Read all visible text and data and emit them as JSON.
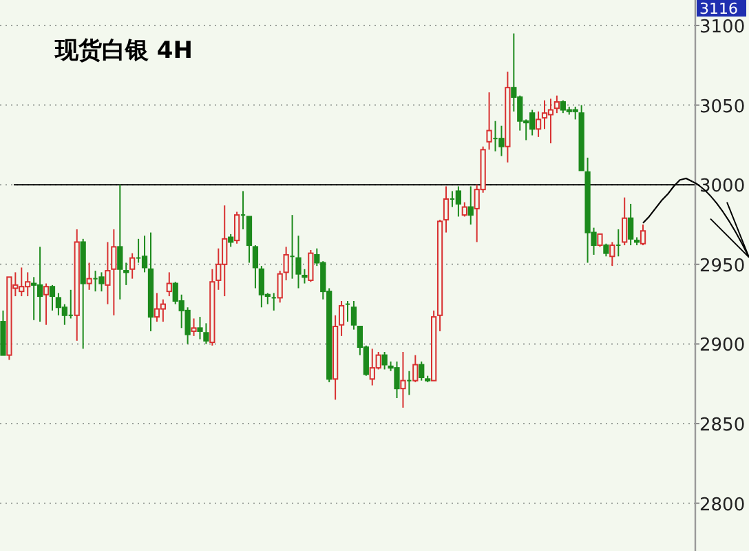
{
  "chart_data": {
    "type": "candlestick",
    "title": "现货白银 4H",
    "categories": [
      null,
      null,
      null,
      null,
      null,
      null,
      null,
      null,
      null,
      null,
      null,
      null,
      null,
      null,
      null,
      null,
      null,
      null,
      null,
      null,
      null,
      null,
      null,
      null,
      null,
      null,
      null,
      null,
      null,
      null,
      null,
      null,
      null,
      null,
      null,
      null,
      null,
      null,
      null,
      null,
      null,
      null,
      null,
      null,
      null,
      null,
      null,
      null,
      null,
      null,
      null,
      null,
      null,
      null,
      null,
      null,
      null,
      null,
      null,
      null,
      null,
      null,
      null,
      null,
      null,
      null,
      null,
      null,
      null,
      null,
      null,
      null,
      null,
      null,
      null,
      null,
      null,
      null,
      null,
      null,
      null,
      null,
      null,
      null,
      null,
      null,
      null,
      null,
      null,
      null,
      null,
      null,
      null,
      null,
      null,
      null,
      null,
      null,
      null,
      null,
      null,
      null,
      null,
      null,
      null,
      null,
      null,
      null,
      null,
      null,
      null,
      null,
      null
    ],
    "ohlc": [
      [
        2914,
        2921,
        2893,
        2893
      ],
      [
        2893,
        2942,
        2890,
        2942
      ],
      [
        2935,
        2945,
        2930,
        2937
      ],
      [
        2933,
        2948,
        2930,
        2936
      ],
      [
        2936,
        2945,
        2930,
        2939
      ],
      [
        2938,
        2942,
        2915,
        2937
      ],
      [
        2937,
        2961,
        2914,
        2930
      ],
      [
        2931,
        2938,
        2912,
        2936
      ],
      [
        2936,
        2937,
        2921,
        2930
      ],
      [
        2929,
        2932,
        2918,
        2923
      ],
      [
        2923,
        2925,
        2912,
        2918
      ],
      [
        2918,
        2934,
        2916,
        2918
      ],
      [
        2918,
        2972,
        2902,
        2964
      ],
      [
        2964,
        2966,
        2897,
        2938
      ],
      [
        2938,
        2951,
        2934,
        2941
      ],
      [
        2941,
        2946,
        2933,
        2941
      ],
      [
        2942,
        2945,
        2933,
        2938
      ],
      [
        2937,
        2964,
        2925,
        2946
      ],
      [
        2947,
        2972,
        2918,
        2961
      ],
      [
        2961,
        3000,
        2928,
        2947
      ],
      [
        2946,
        2951,
        2937,
        2945
      ],
      [
        2947,
        2957,
        2941,
        2954
      ],
      [
        2954,
        2966,
        2951,
        2954
      ],
      [
        2955,
        2968,
        2945,
        2948
      ],
      [
        2947,
        2970,
        2908,
        2917
      ],
      [
        2917,
        2932,
        2914,
        2922
      ],
      [
        2922,
        2928,
        2914,
        2925
      ],
      [
        2933,
        2945,
        2930,
        2938
      ],
      [
        2938,
        2939,
        2925,
        2927
      ],
      [
        2927,
        2931,
        2910,
        2921
      ],
      [
        2921,
        2923,
        2900,
        2906
      ],
      [
        2908,
        2916,
        2905,
        2910
      ],
      [
        2910,
        2917,
        2903,
        2908
      ],
      [
        2907,
        2913,
        2900,
        2902
      ],
      [
        2901,
        2947,
        2899,
        2939
      ],
      [
        2940,
        2960,
        2934,
        2950
      ],
      [
        2950,
        2987,
        2930,
        2966
      ],
      [
        2967,
        2969,
        2961,
        2964
      ],
      [
        2965,
        2983,
        2963,
        2981
      ],
      [
        2981,
        2996,
        2972,
        2981
      ],
      [
        2980,
        2980,
        2951,
        2962
      ],
      [
        2961,
        2962,
        2935,
        2948
      ],
      [
        2947,
        2949,
        2923,
        2931
      ],
      [
        2931,
        2932,
        2925,
        2930
      ],
      [
        2929,
        2932,
        2921,
        2929
      ],
      [
        2929,
        2946,
        2926,
        2944
      ],
      [
        2945,
        2961,
        2940,
        2956
      ],
      [
        2955,
        2981,
        2941,
        2955
      ],
      [
        2954,
        2968,
        2935,
        2944
      ],
      [
        2943,
        2947,
        2938,
        2942
      ],
      [
        2940,
        2959,
        2939,
        2957
      ],
      [
        2956,
        2960,
        2949,
        2951
      ],
      [
        2951,
        2952,
        2928,
        2933
      ],
      [
        2933,
        2935,
        2876,
        2878
      ],
      [
        2878,
        2918,
        2865,
        2911
      ],
      [
        2912,
        2927,
        2905,
        2924
      ],
      [
        2925,
        2927,
        2914,
        2925
      ],
      [
        2923,
        2927,
        2909,
        2912
      ],
      [
        2911,
        2911,
        2893,
        2898
      ],
      [
        2898,
        2899,
        2880,
        2881
      ],
      [
        2878,
        2897,
        2874,
        2885
      ],
      [
        2885,
        2895,
        2884,
        2893
      ],
      [
        2893,
        2895,
        2884,
        2887
      ],
      [
        2886,
        2889,
        2883,
        2885
      ],
      [
        2885,
        2889,
        2866,
        2872
      ],
      [
        2872,
        2895,
        2860,
        2877
      ],
      [
        2877,
        2883,
        2868,
        2877
      ],
      [
        2877,
        2893,
        2876,
        2887
      ],
      [
        2887,
        2889,
        2877,
        2879
      ],
      [
        2878,
        2880,
        2876,
        2877
      ],
      [
        2877,
        2921,
        2877,
        2917
      ],
      [
        2918,
        2978,
        2908,
        2977
      ],
      [
        2978,
        2999,
        2970,
        2991
      ],
      [
        2991,
        2996,
        2986,
        2991
      ],
      [
        2996,
        2999,
        2980,
        2988
      ],
      [
        2981,
        2989,
        2980,
        2986
      ],
      [
        2986,
        2999,
        2975,
        2981
      ],
      [
        2985,
        3000,
        2964,
        2997
      ],
      [
        2997,
        3024,
        2995,
        3022
      ],
      [
        3027,
        3058,
        3022,
        3034
      ],
      [
        3029,
        3040,
        3021,
        3029
      ],
      [
        3029,
        3037,
        3018,
        3024
      ],
      [
        3024,
        3071,
        3014,
        3061
      ],
      [
        3061,
        3095,
        3046,
        3055
      ],
      [
        3055,
        3056,
        3034,
        3040
      ],
      [
        3040,
        3041,
        3028,
        3039
      ],
      [
        3045,
        3047,
        3031,
        3035
      ],
      [
        3035,
        3046,
        3030,
        3041
      ],
      [
        3042,
        3053,
        3035,
        3045
      ],
      [
        3044,
        3054,
        3026,
        3047
      ],
      [
        3048,
        3056,
        3045,
        3052
      ],
      [
        3052,
        3053,
        3045,
        3047
      ],
      [
        3047,
        3049,
        3044,
        3046
      ],
      [
        3047,
        3049,
        3041,
        3046
      ],
      [
        3045,
        3050,
        3009,
        3009
      ],
      [
        3008,
        3017,
        2951,
        2970
      ],
      [
        2970,
        2973,
        2956,
        2962
      ],
      [
        2962,
        2969,
        2961,
        2969
      ],
      [
        2962,
        2963,
        2955,
        2957
      ],
      [
        2955,
        2964,
        2949,
        2962
      ],
      [
        2962,
        2972,
        2955,
        2962
      ],
      [
        2964,
        2992,
        2962,
        2979
      ],
      [
        2979,
        2988,
        2962,
        2966
      ],
      [
        2965,
        2967,
        2962,
        2964
      ],
      [
        2963,
        2975,
        2962,
        2971
      ],
      null,
      null,
      null,
      null,
      null,
      null,
      null,
      null
    ],
    "series": [
      {
        "type": "line",
        "color": "#000000",
        "values": [
          null,
          null,
          null,
          null,
          null,
          null,
          null,
          null,
          null,
          null,
          null,
          null,
          null,
          null,
          null,
          null,
          null,
          null,
          null,
          null,
          null,
          null,
          null,
          null,
          null,
          null,
          null,
          null,
          null,
          null,
          null,
          null,
          null,
          null,
          null,
          null,
          null,
          null,
          null,
          null,
          null,
          null,
          null,
          null,
          null,
          null,
          null,
          null,
          null,
          null,
          null,
          null,
          null,
          null,
          null,
          null,
          null,
          null,
          null,
          null,
          null,
          null,
          null,
          null,
          null,
          null,
          null,
          null,
          null,
          null,
          null,
          null,
          null,
          null,
          null,
          null,
          null,
          null,
          null,
          null,
          null,
          null,
          null,
          null,
          null,
          null,
          null,
          null,
          null,
          null,
          null,
          null,
          null,
          null,
          null,
          null,
          null,
          null,
          null,
          null,
          null,
          null,
          null,
          null,
          2976,
          2980,
          2985,
          2990,
          2994,
          2999,
          3003,
          3004,
          3002
        ]
      }
    ],
    "ylim": [
      2770,
      3116
    ],
    "yticks": [
      2800,
      2850,
      2900,
      2950,
      3000,
      3050,
      3100
    ],
    "grid": "y",
    "ref_lines": [
      {
        "axis": "y",
        "value": 3000,
        "color": "#000000",
        "line_style": "solid"
      }
    ],
    "annotations": [
      "3116"
    ]
  }
}
